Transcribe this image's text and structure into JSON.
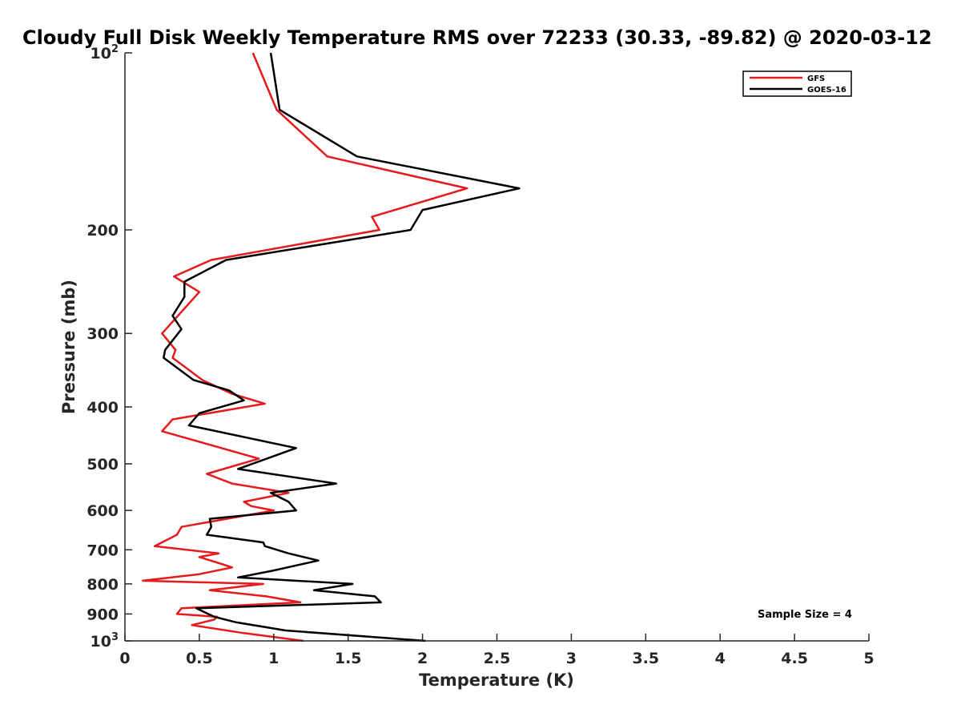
{
  "chart_data": {
    "type": "line",
    "title": "Cloudy Full Disk Weekly Temperature RMS over 72233 (30.33, -89.82) @ 2020-03-12",
    "xlabel": "Temperature (K)",
    "ylabel": "Pressure (mb)",
    "xlim": [
      0,
      5
    ],
    "ylim": [
      100,
      1000
    ],
    "yscale": "log",
    "y_reversed": true,
    "xticks": [
      0,
      0.5,
      1,
      1.5,
      2,
      2.5,
      3,
      3.5,
      4,
      4.5,
      5
    ],
    "xtick_labels": [
      "0",
      "0.5",
      "1",
      "1.5",
      "2",
      "2.5",
      "3",
      "3.5",
      "4",
      "4.5",
      "5"
    ],
    "yticks": [
      100,
      200,
      300,
      400,
      500,
      600,
      700,
      800,
      900,
      1000
    ],
    "ytick_labels": [
      {
        "base": "10",
        "exp": "2"
      },
      {
        "base": "200",
        "exp": ""
      },
      {
        "base": "300",
        "exp": ""
      },
      {
        "base": "400",
        "exp": ""
      },
      {
        "base": "500",
        "exp": ""
      },
      {
        "base": "600",
        "exp": ""
      },
      {
        "base": "700",
        "exp": ""
      },
      {
        "base": "800",
        "exp": ""
      },
      {
        "base": "900",
        "exp": ""
      },
      {
        "base": "10",
        "exp": "3"
      }
    ],
    "legend_position": "top-right",
    "annotation": "Sample Size = 4",
    "series": [
      {
        "name": "GFS",
        "color": "#e41a1c",
        "points": [
          [
            0.86,
            100
          ],
          [
            1.02,
            125
          ],
          [
            1.36,
            150
          ],
          [
            2.3,
            170
          ],
          [
            1.66,
            190
          ],
          [
            1.71,
            200
          ],
          [
            0.58,
            225
          ],
          [
            0.33,
            240
          ],
          [
            0.5,
            255
          ],
          [
            0.25,
            300
          ],
          [
            0.34,
            320
          ],
          [
            0.32,
            330
          ],
          [
            0.52,
            360
          ],
          [
            0.72,
            380
          ],
          [
            0.94,
            395
          ],
          [
            0.32,
            420
          ],
          [
            0.25,
            440
          ],
          [
            0.9,
            490
          ],
          [
            0.55,
            520
          ],
          [
            0.72,
            540
          ],
          [
            1.1,
            560
          ],
          [
            0.8,
            580
          ],
          [
            0.85,
            590
          ],
          [
            1.0,
            600
          ],
          [
            0.38,
            640
          ],
          [
            0.35,
            660
          ],
          [
            0.2,
            690
          ],
          [
            0.63,
            710
          ],
          [
            0.5,
            720
          ],
          [
            0.65,
            740
          ],
          [
            0.72,
            750
          ],
          [
            0.5,
            770
          ],
          [
            0.12,
            790
          ],
          [
            0.93,
            800
          ],
          [
            0.57,
            820
          ],
          [
            0.95,
            840
          ],
          [
            1.18,
            860
          ],
          [
            0.38,
            880
          ],
          [
            0.35,
            900
          ],
          [
            0.62,
            910
          ],
          [
            0.6,
            920
          ],
          [
            0.45,
            940
          ],
          [
            0.8,
            970
          ],
          [
            1.2,
            1000
          ]
        ]
      },
      {
        "name": "GOES-16",
        "color": "#000000",
        "points": [
          [
            0.98,
            100
          ],
          [
            1.04,
            125
          ],
          [
            1.56,
            150
          ],
          [
            2.65,
            170
          ],
          [
            2.0,
            185
          ],
          [
            1.92,
            200
          ],
          [
            0.68,
            225
          ],
          [
            0.4,
            245
          ],
          [
            0.4,
            260
          ],
          [
            0.32,
            280
          ],
          [
            0.38,
            295
          ],
          [
            0.27,
            320
          ],
          [
            0.26,
            330
          ],
          [
            0.46,
            360
          ],
          [
            0.7,
            375
          ],
          [
            0.8,
            390
          ],
          [
            0.5,
            410
          ],
          [
            0.43,
            430
          ],
          [
            1.15,
            470
          ],
          [
            0.76,
            510
          ],
          [
            1.42,
            540
          ],
          [
            0.98,
            560
          ],
          [
            1.1,
            580
          ],
          [
            1.15,
            600
          ],
          [
            0.57,
            620
          ],
          [
            0.58,
            640
          ],
          [
            0.55,
            660
          ],
          [
            0.93,
            680
          ],
          [
            0.94,
            690
          ],
          [
            1.1,
            710
          ],
          [
            1.3,
            730
          ],
          [
            0.99,
            760
          ],
          [
            0.76,
            780
          ],
          [
            1.53,
            800
          ],
          [
            1.27,
            820
          ],
          [
            1.68,
            840
          ],
          [
            1.72,
            860
          ],
          [
            0.48,
            880
          ],
          [
            0.6,
            910
          ],
          [
            0.75,
            930
          ],
          [
            1.08,
            960
          ],
          [
            2.02,
            1000
          ]
        ]
      }
    ]
  }
}
